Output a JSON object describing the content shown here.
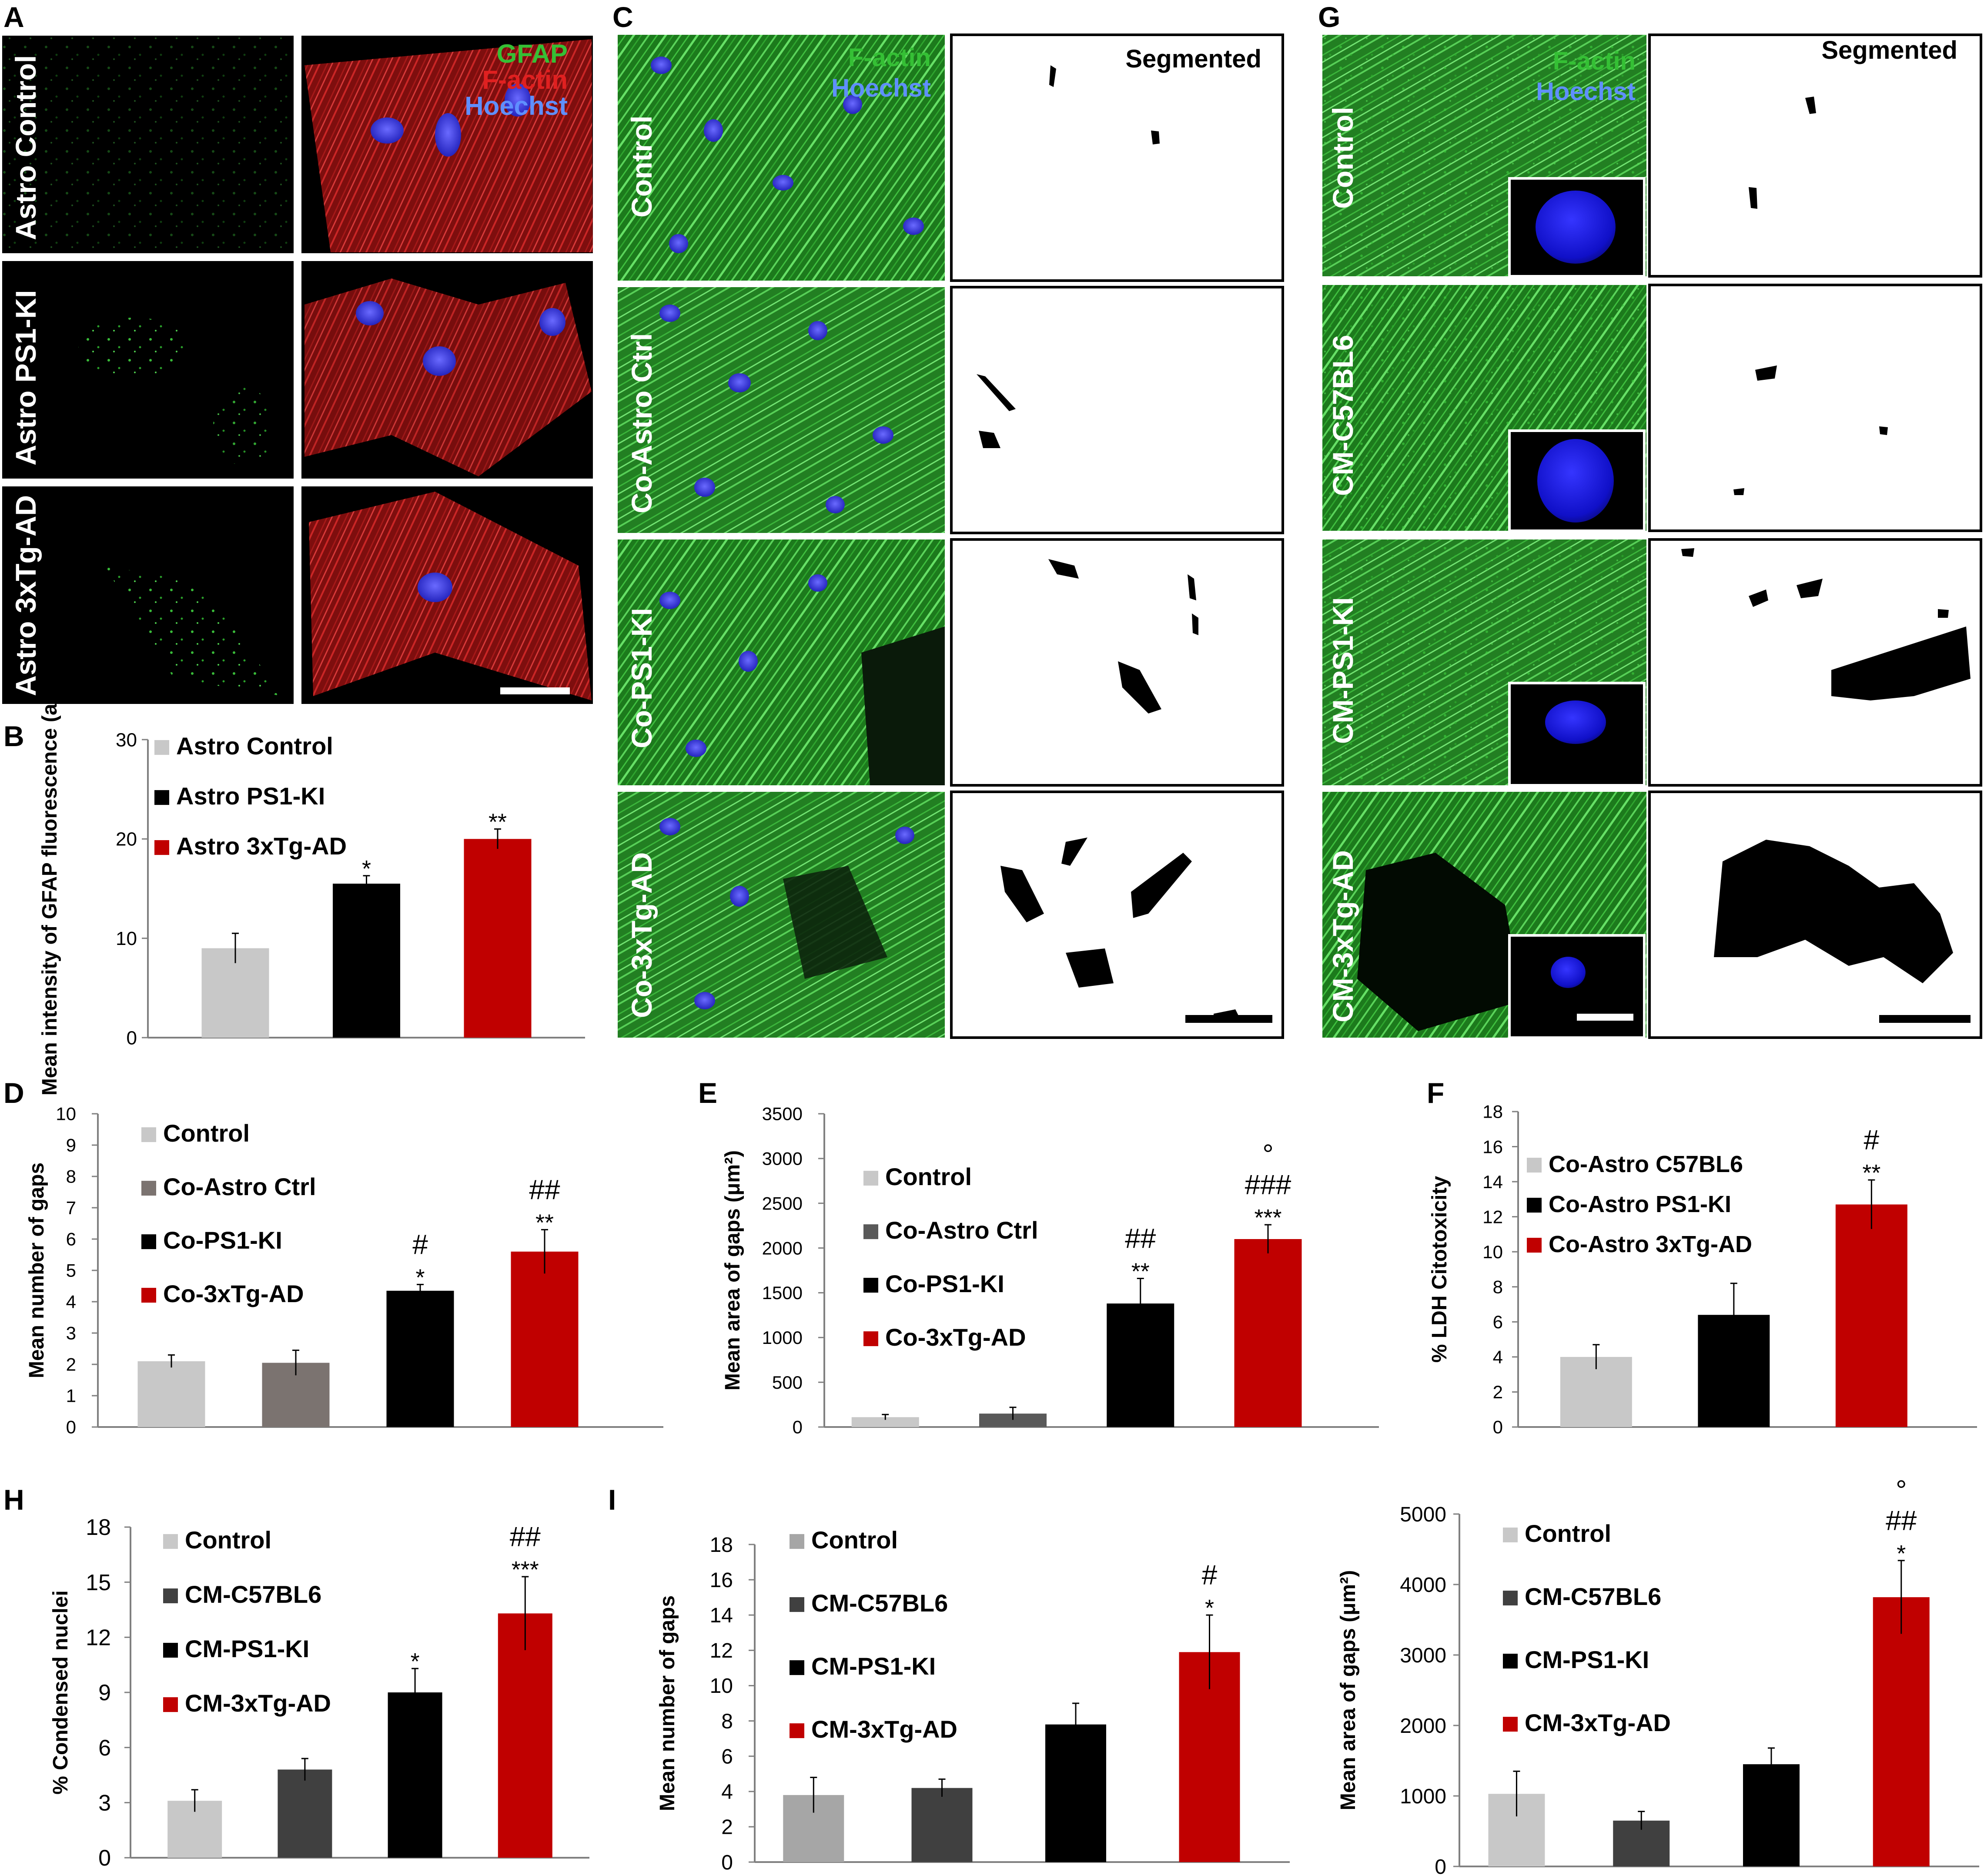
{
  "colors": {
    "light_gray": "#c8c8c8",
    "dark_gray": "#595959",
    "mid_gray": "#7b7370",
    "black": "#000000",
    "red": "#c00000",
    "micro_bg": "#000000",
    "factin_green": "#34b233",
    "nucleus_blue": "#3f3fe0"
  },
  "panels": {
    "A": {
      "letter": "A",
      "rows": [
        "Astro Control",
        "Astro PS1-KI",
        "Astro 3xTg-AD"
      ],
      "stain_labels": [
        "GFAP",
        "F-actin",
        "Hoechst"
      ],
      "stain_colors": [
        "#35c035",
        "#e02020",
        "#5f8fff"
      ]
    },
    "C": {
      "letter": "C",
      "rows": [
        "Control",
        "Co-Astro Ctrl",
        "Co-PS1-KI",
        "Co-3xTg-AD"
      ],
      "stain_labels": [
        "F-actin",
        "Hoechst"
      ],
      "segmented_label": "Segmented"
    },
    "G": {
      "letter": "G",
      "rows": [
        "Control",
        "CM-C57BL6",
        "CM-PS1-KI",
        "CM-3xTg-AD"
      ],
      "stain_labels": [
        "F-actin",
        "Hoechst"
      ],
      "segmented_label": "Segmented"
    }
  },
  "chart_data": [
    {
      "panel": "B",
      "type": "bar",
      "ylabel": "Mean intensity of GFAP fluorescence (aU)",
      "ylim": [
        0,
        30
      ],
      "yticks": [
        "0",
        "10",
        "20",
        "30"
      ],
      "categories": [
        "Astro Control",
        "Astro PS1-KI",
        "Astro 3xTg-AD"
      ],
      "values": [
        9,
        15.5,
        20
      ],
      "errors": [
        1.5,
        0.8,
        1.0
      ],
      "colors": [
        "#c8c8c8",
        "#000000",
        "#c00000"
      ],
      "annotations": [
        [],
        [
          "*"
        ],
        [
          "**"
        ]
      ],
      "legend": [
        "Astro Control",
        "Astro PS1-KI",
        "Astro 3xTg-AD"
      ]
    },
    {
      "panel": "D",
      "type": "bar",
      "ylabel": "Mean number of gaps",
      "ylim": [
        0,
        10
      ],
      "yticks": [
        "0",
        "1",
        "2",
        "3",
        "4",
        "5",
        "6",
        "7",
        "8",
        "9",
        "10"
      ],
      "categories": [
        "Control",
        "Co-Astro Ctrl",
        "Co-PS1-KI",
        "Co-3xTg-AD"
      ],
      "values": [
        2.1,
        2.05,
        4.35,
        5.6
      ],
      "errors": [
        0.2,
        0.4,
        0.2,
        0.7
      ],
      "colors": [
        "#c8c8c8",
        "#7b7370",
        "#000000",
        "#c00000"
      ],
      "annotations": [
        [],
        [],
        [
          "#",
          "*"
        ],
        [
          "##",
          "**"
        ]
      ],
      "legend": [
        "Control",
        "Co-Astro Ctrl",
        "Co-PS1-KI",
        "Co-3xTg-AD"
      ]
    },
    {
      "panel": "E",
      "type": "bar",
      "ylabel": "Mean area of gaps (μm²)",
      "ylim": [
        0,
        3500
      ],
      "yticks": [
        "0",
        "500",
        "1000",
        "1500",
        "2000",
        "2500",
        "3000",
        "3500"
      ],
      "categories": [
        "Control",
        "Co-Astro Ctrl",
        "Co-PS1-KI",
        "Co-3xTg-AD"
      ],
      "values": [
        110,
        150,
        1380,
        2100
      ],
      "errors": [
        30,
        70,
        280,
        160
      ],
      "colors": [
        "#c8c8c8",
        "#595959",
        "#000000",
        "#c00000"
      ],
      "annotations": [
        [],
        [],
        [
          "##",
          "**"
        ],
        [
          "°",
          "###",
          "***"
        ]
      ],
      "legend": [
        "Control",
        "Co-Astro Ctrl",
        "Co-PS1-KI",
        "Co-3xTg-AD"
      ]
    },
    {
      "panel": "F",
      "type": "bar",
      "ylabel": "% LDH Citotoxicity",
      "ylim": [
        0,
        18
      ],
      "yticks": [
        "0",
        "2",
        "4",
        "6",
        "8",
        "10",
        "12",
        "14",
        "16",
        "18"
      ],
      "categories": [
        "Co-Astro C57BL6",
        "Co-Astro PS1-KI",
        "Co-Astro 3xTg-AD"
      ],
      "values": [
        4.0,
        6.4,
        12.7
      ],
      "errors": [
        0.7,
        1.8,
        1.4
      ],
      "colors": [
        "#c8c8c8",
        "#000000",
        "#c00000"
      ],
      "annotations": [
        [],
        [],
        [
          "#",
          "**"
        ]
      ],
      "legend": [
        "Co-Astro C57BL6",
        "Co-Astro PS1-KI",
        "Co-Astro 3xTg-AD"
      ]
    },
    {
      "panel": "H",
      "type": "bar",
      "ylabel": "% Condensed nuclei",
      "ylim": [
        0,
        18
      ],
      "yticks": [
        "0",
        "3",
        "6",
        "9",
        "12",
        "15",
        "18"
      ],
      "categories": [
        "Control",
        "CM-C57BL6",
        "CM-PS1-KI",
        "CM-3xTg-AD"
      ],
      "values": [
        3.1,
        4.8,
        9.0,
        13.3
      ],
      "errors": [
        0.6,
        0.6,
        1.3,
        2.0
      ],
      "colors": [
        "#c8c8c8",
        "#404040",
        "#000000",
        "#c00000"
      ],
      "annotations": [
        [],
        [],
        [
          "*"
        ],
        [
          "##",
          "***"
        ]
      ],
      "legend": [
        "Control",
        "CM-C57BL6",
        "CM-PS1-KI",
        "CM-3xTg-AD"
      ]
    },
    {
      "panel": "I",
      "type": "bar",
      "ylabel": "Mean number of gaps",
      "ylim": [
        0,
        18
      ],
      "yticks": [
        "0",
        "2",
        "4",
        "6",
        "8",
        "10",
        "12",
        "14",
        "16",
        "18"
      ],
      "categories": [
        "Control",
        "CM-C57BL6",
        "CM-PS1-KI",
        "CM-3xTg-AD"
      ],
      "values": [
        3.8,
        4.2,
        7.8,
        11.9
      ],
      "errors": [
        1.0,
        0.5,
        1.2,
        2.1
      ],
      "colors": [
        "#a6a6a6",
        "#404040",
        "#000000",
        "#c00000"
      ],
      "annotations": [
        [],
        [],
        [],
        [
          "#",
          "*"
        ]
      ],
      "legend": [
        "Control",
        "CM-C57BL6",
        "CM-PS1-KI",
        "CM-3xTg-AD"
      ]
    },
    {
      "panel": "",
      "type": "bar",
      "ylabel": "Mean area of gaps (μm²)",
      "ylim": [
        0,
        5000
      ],
      "yticks": [
        "0",
        "1000",
        "2000",
        "3000",
        "4000",
        "5000"
      ],
      "categories": [
        "Control",
        "CM-C57BL6",
        "CM-PS1-KI",
        "CM-3xTg-AD"
      ],
      "values": [
        1030,
        650,
        1450,
        3820
      ],
      "errors": [
        320,
        130,
        230,
        520
      ],
      "colors": [
        "#c8c8c8",
        "#404040",
        "#000000",
        "#c00000"
      ],
      "annotations": [
        [],
        [],
        [],
        [
          "°",
          "##",
          "*"
        ]
      ],
      "legend": [
        "Control",
        "CM-C57BL6",
        "CM-PS1-KI",
        "CM-3xTg-AD"
      ]
    }
  ]
}
